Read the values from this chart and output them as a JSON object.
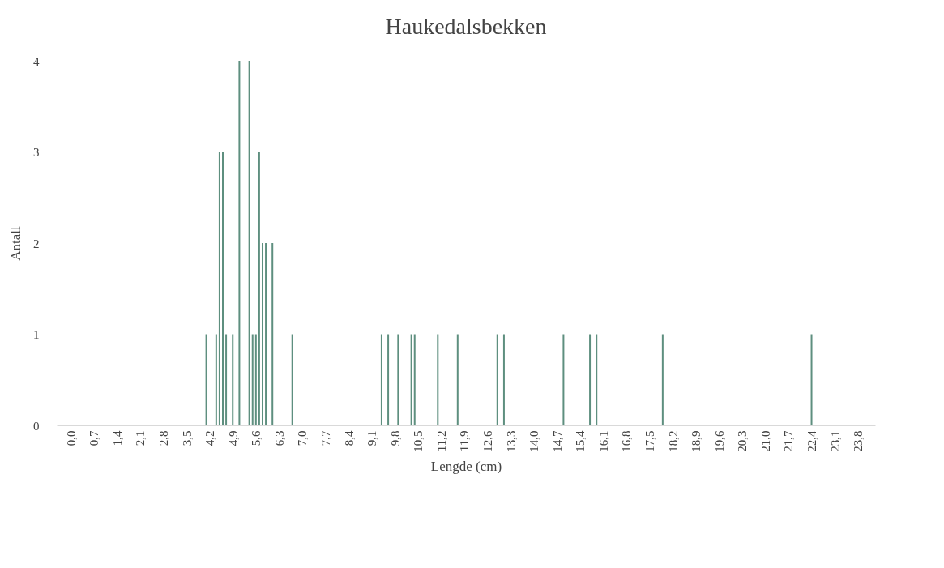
{
  "chart_data": {
    "type": "bar",
    "title": "Haukedalsbekken",
    "xlabel": "Lengde (cm)",
    "ylabel": "Antall",
    "x": [
      4.1,
      4.4,
      4.5,
      4.6,
      4.7,
      4.9,
      5.1,
      5.4,
      5.5,
      5.6,
      5.7,
      5.8,
      5.9,
      6.1,
      6.7,
      9.4,
      9.6,
      9.9,
      10.3,
      10.4,
      11.1,
      11.7,
      12.9,
      13.1,
      14.9,
      15.7,
      15.9,
      17.9,
      22.4
    ],
    "values": [
      1,
      1,
      3,
      3,
      1,
      1,
      4,
      4,
      1,
      1,
      3,
      2,
      2,
      2,
      1,
      1,
      1,
      1,
      1,
      1,
      1,
      1,
      1,
      1,
      1,
      1,
      1,
      1,
      1
    ],
    "color": "#5e8f7f",
    "xlim": [
      -0.3,
      24.2
    ],
    "ylim": [
      0,
      4
    ],
    "yticks": [
      0,
      1,
      2,
      3,
      4
    ],
    "xticks": [
      {
        "value": 0,
        "label": "0,0"
      },
      {
        "value": 0.7,
        "label": "0,7"
      },
      {
        "value": 1.4,
        "label": "1,4"
      },
      {
        "value": 2.1,
        "label": "2,1"
      },
      {
        "value": 2.8,
        "label": "2,8"
      },
      {
        "value": 3.5,
        "label": "3,5"
      },
      {
        "value": 4.2,
        "label": "4,2"
      },
      {
        "value": 4.9,
        "label": "4,9"
      },
      {
        "value": 5.6,
        "label": "5,6"
      },
      {
        "value": 6.3,
        "label": "6,3"
      },
      {
        "value": 7.0,
        "label": "7,0"
      },
      {
        "value": 7.7,
        "label": "7,7"
      },
      {
        "value": 8.4,
        "label": "8,4"
      },
      {
        "value": 9.1,
        "label": "9,1"
      },
      {
        "value": 9.8,
        "label": "9,8"
      },
      {
        "value": 10.5,
        "label": "10,5"
      },
      {
        "value": 11.2,
        "label": "11,2"
      },
      {
        "value": 11.9,
        "label": "11,9"
      },
      {
        "value": 12.6,
        "label": "12,6"
      },
      {
        "value": 13.3,
        "label": "13,3"
      },
      {
        "value": 14.0,
        "label": "14,0"
      },
      {
        "value": 14.7,
        "label": "14,7"
      },
      {
        "value": 15.4,
        "label": "15,4"
      },
      {
        "value": 16.1,
        "label": "16,1"
      },
      {
        "value": 16.8,
        "label": "16,8"
      },
      {
        "value": 17.5,
        "label": "17,5"
      },
      {
        "value": 18.2,
        "label": "18,2"
      },
      {
        "value": 18.9,
        "label": "18,9"
      },
      {
        "value": 19.6,
        "label": "19,6"
      },
      {
        "value": 20.3,
        "label": "20,3"
      },
      {
        "value": 21.0,
        "label": "21,0"
      },
      {
        "value": 21.7,
        "label": "21,7"
      },
      {
        "value": 22.4,
        "label": "22,4"
      },
      {
        "value": 23.1,
        "label": "23,1"
      },
      {
        "value": 23.8,
        "label": "23,8"
      }
    ],
    "grid": false
  }
}
